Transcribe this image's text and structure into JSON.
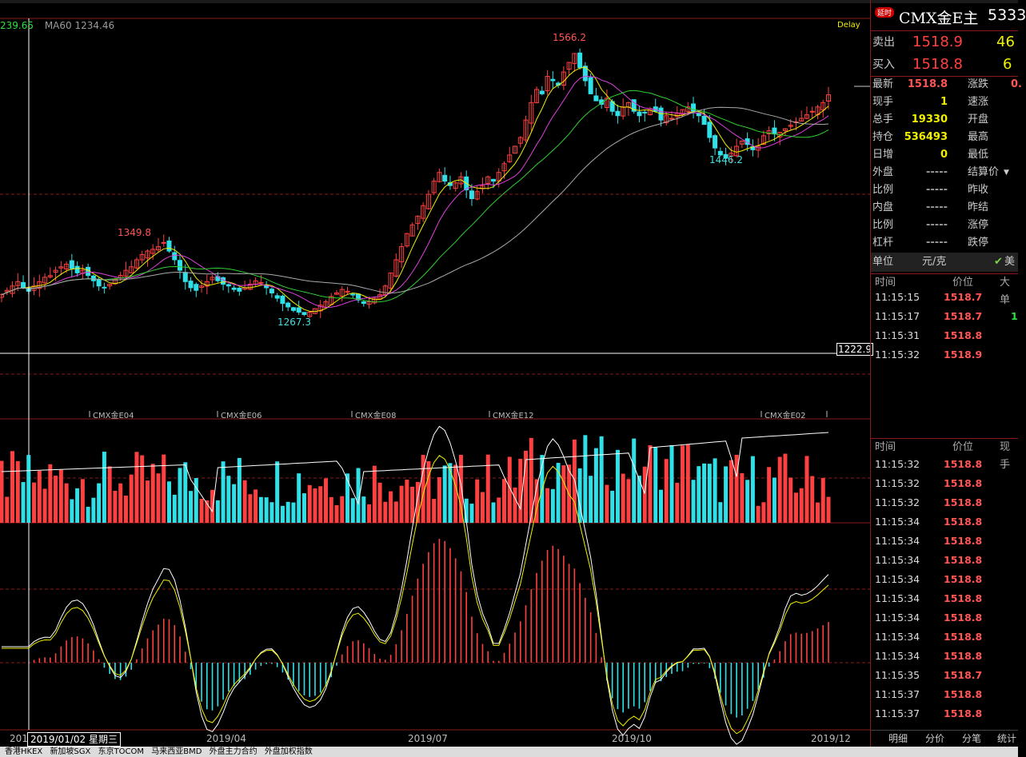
{
  "chart": {
    "ma_label": "MA60 1234.46",
    "left_value": "239.65",
    "delay_label": "Delay",
    "price_high_label": "1566.2",
    "price_low_label": "1267.3",
    "price_high2_label": "1349.8",
    "price_low2_label": "1446.2",
    "crosshair_price": "1222.9",
    "contract_labels": [
      "CMX金E04",
      "CMX金E06",
      "CMX金E08",
      "CMX金E12",
      "CMX金E02"
    ],
    "x_labels": [
      "2019/04",
      "2019/07",
      "2019/10",
      "2019/12"
    ],
    "x_label_left": "201",
    "crosshair_date": "2019/01/02 星期三"
  },
  "chart_data": {
    "type": "candlestick",
    "title": "CMX金E主",
    "ylim": [
      1222.9,
      1600
    ],
    "closes": [
      1290,
      1295,
      1300,
      1305,
      1298,
      1294,
      1300,
      1305,
      1310,
      1312,
      1318,
      1322,
      1325,
      1320,
      1315,
      1318,
      1312,
      1306,
      1300,
      1298,
      1302,
      1308,
      1312,
      1318,
      1322,
      1330,
      1336,
      1340,
      1342,
      1345,
      1349.8,
      1340,
      1330,
      1318,
      1305,
      1298,
      1295,
      1300,
      1305,
      1310,
      1306,
      1302,
      1300,
      1296,
      1294,
      1298,
      1302,
      1306,
      1304,
      1298,
      1292,
      1286,
      1280,
      1276,
      1272,
      1270,
      1267.3,
      1270,
      1274,
      1278,
      1282,
      1288,
      1292,
      1296,
      1294,
      1290,
      1284,
      1280,
      1282,
      1286,
      1290,
      1300,
      1315,
      1330,
      1345,
      1360,
      1370,
      1380,
      1392,
      1405,
      1420,
      1430,
      1420,
      1415,
      1418,
      1425,
      1410,
      1400,
      1408,
      1415,
      1425,
      1420,
      1430,
      1440,
      1450,
      1460,
      1470,
      1490,
      1510,
      1525,
      1520,
      1540,
      1535,
      1530,
      1545,
      1556,
      1566.2,
      1550,
      1535,
      1520,
      1512,
      1508,
      1515,
      1500,
      1495,
      1505,
      1510,
      1500,
      1495,
      1498,
      1503,
      1500,
      1490,
      1495,
      1492,
      1498,
      1502,
      1505,
      1500,
      1495,
      1485,
      1470,
      1458,
      1450,
      1446.2,
      1452,
      1460,
      1466,
      1462,
      1456,
      1460,
      1472,
      1478,
      1474,
      1476,
      1480,
      1484,
      1488,
      1492,
      1496,
      1500,
      1505,
      1510,
      1518.9
    ],
    "high_label": 1566.2,
    "low_label": 1267.3
  },
  "quote": {
    "tag": "延时",
    "title": "CMX金E主",
    "code": "5333",
    "sell_label": "卖出",
    "sell_price": "1518.9",
    "sell_vol": "46",
    "buy_label": "买入",
    "buy_price": "1518.8",
    "buy_vol": "6",
    "rows": [
      {
        "label": "最新",
        "value": "1518.8",
        "label2": "涨跌",
        "value2": "0."
      },
      {
        "label": "现手",
        "value": "1",
        "label2": "速涨",
        "value2": ""
      },
      {
        "label": "总手",
        "value": "19330",
        "label2": "开盘",
        "value2": ""
      },
      {
        "label": "持仓",
        "value": "536493",
        "label2": "最高",
        "value2": ""
      },
      {
        "label": "日增",
        "value": "0",
        "label2": "最低",
        "value2": ""
      },
      {
        "label": "外盘",
        "value": "-----",
        "label2": "结算价",
        "value2": ""
      },
      {
        "label": "比例",
        "value": "-----",
        "label2": "昨收",
        "value2": ""
      },
      {
        "label": "内盘",
        "value": "-----",
        "label2": "昨结",
        "value2": ""
      },
      {
        "label": "比例",
        "value": "-----",
        "label2": "涨停",
        "value2": ""
      },
      {
        "label": "杠杆",
        "value": "-----",
        "label2": "跌停",
        "value2": ""
      }
    ],
    "unit_label": "单位",
    "unit_value": "元/克",
    "currency_check": "美"
  },
  "trades_top": {
    "headers": [
      "时间",
      "价位",
      "大单"
    ],
    "rows": [
      {
        "time": "11:15:15",
        "price": "1518.7",
        "vol": ""
      },
      {
        "time": "11:15:17",
        "price": "1518.7",
        "vol": "1"
      },
      {
        "time": "11:15:31",
        "price": "1518.8",
        "vol": ""
      },
      {
        "time": "11:15:32",
        "price": "1518.9",
        "vol": ""
      }
    ]
  },
  "trades_bottom": {
    "headers": [
      "时间",
      "价位",
      "现手"
    ],
    "rows": [
      {
        "time": "11:15:32",
        "price": "1518.8"
      },
      {
        "time": "11:15:32",
        "price": "1518.8"
      },
      {
        "time": "11:15:32",
        "price": "1518.8"
      },
      {
        "time": "11:15:34",
        "price": "1518.8"
      },
      {
        "time": "11:15:34",
        "price": "1518.8"
      },
      {
        "time": "11:15:34",
        "price": "1518.8"
      },
      {
        "time": "11:15:34",
        "price": "1518.8"
      },
      {
        "time": "11:15:34",
        "price": "1518.8"
      },
      {
        "time": "11:15:34",
        "price": "1518.8"
      },
      {
        "time": "11:15:34",
        "price": "1518.8"
      },
      {
        "time": "11:15:34",
        "price": "1518.8"
      },
      {
        "time": "11:15:35",
        "price": "1518.7"
      },
      {
        "time": "11:15:37",
        "price": "1518.8"
      },
      {
        "time": "11:15:37",
        "price": "1518.8"
      }
    ]
  },
  "tabs": [
    "明细",
    "分价",
    "分笔",
    "统计"
  ],
  "status_items": [
    "香港HKEX",
    "新加坡SGX",
    "东京TOCOM",
    "马来西亚BMD",
    "外盘主力合约",
    "外盘加权指数"
  ],
  "colors": {
    "up": "#ff4040",
    "down": "#30e0e8",
    "bg": "#000000",
    "grid": "#8b1a1a",
    "ma_yellow": "#f0f000",
    "ma_magenta": "#e040e0",
    "ma_green": "#30d030",
    "ma_gray": "#aaaaaa"
  }
}
